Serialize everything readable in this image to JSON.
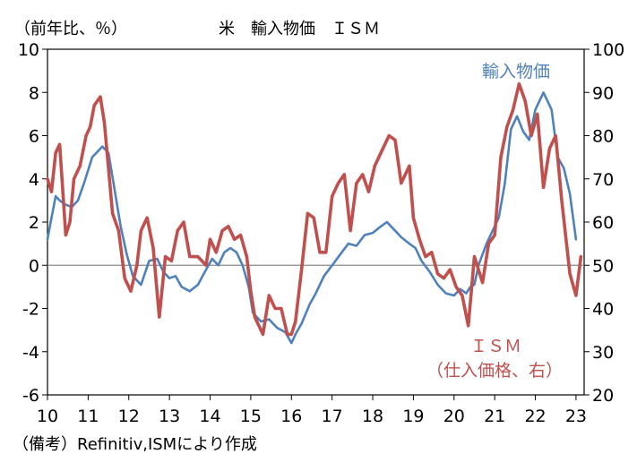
{
  "chart_data": {
    "type": "line",
    "title": "米　輸入物価　ＩＳＭ",
    "left_axis_unit": "（前年比、％）",
    "source_note": "（備考）Refinitiv,ISMにより作成",
    "x_tick_labels": [
      "10",
      "11",
      "12",
      "13",
      "14",
      "15",
      "16",
      "17",
      "18",
      "19",
      "20",
      "21",
      "22",
      "23"
    ],
    "x_range": [
      2010.0,
      2023.2
    ],
    "y_left": {
      "range": [
        -6,
        10
      ],
      "ticks": [
        -6,
        -4,
        -2,
        0,
        2,
        4,
        6,
        8,
        10
      ]
    },
    "y_right": {
      "range": [
        20,
        100
      ],
      "ticks": [
        20,
        30,
        40,
        50,
        60,
        70,
        80,
        90,
        100
      ]
    },
    "series": [
      {
        "name": "輸入物価",
        "label_text": "輸入物価",
        "axis": "left",
        "color": "#4f81bd",
        "x": [
          2010.0,
          2010.1,
          2010.2,
          2010.3,
          2010.45,
          2010.6,
          2010.75,
          2010.9,
          2011.1,
          2011.35,
          2011.5,
          2011.65,
          2011.8,
          2011.95,
          2012.1,
          2012.3,
          2012.5,
          2012.7,
          2012.85,
          2013.0,
          2013.15,
          2013.3,
          2013.5,
          2013.7,
          2013.9,
          2014.05,
          2014.2,
          2014.35,
          2014.5,
          2014.65,
          2014.8,
          2014.95,
          2015.05,
          2015.25,
          2015.45,
          2015.65,
          2015.85,
          2016.0,
          2016.1,
          2016.25,
          2016.45,
          2016.6,
          2016.8,
          2017.0,
          2017.2,
          2017.4,
          2017.6,
          2017.8,
          2018.0,
          2018.2,
          2018.35,
          2018.5,
          2018.7,
          2018.9,
          2019.05,
          2019.2,
          2019.4,
          2019.6,
          2019.8,
          2020.0,
          2020.15,
          2020.3,
          2020.4,
          2020.5,
          2020.6,
          2020.8,
          2020.95,
          2021.1,
          2021.25,
          2021.4,
          2021.55,
          2021.7,
          2021.85,
          2022.0,
          2022.2,
          2022.4,
          2022.55,
          2022.7,
          2022.85,
          2023.0
        ],
        "values": [
          1.2,
          2.2,
          3.2,
          3.0,
          2.8,
          2.7,
          3.0,
          3.8,
          5.0,
          5.5,
          5.2,
          3.5,
          1.8,
          0.5,
          -0.5,
          -0.9,
          0.2,
          0.3,
          -0.3,
          -0.6,
          -0.5,
          -1.0,
          -1.2,
          -0.9,
          -0.2,
          0.3,
          0.0,
          0.6,
          0.8,
          0.6,
          0.0,
          -1.0,
          -2.2,
          -2.6,
          -2.5,
          -2.9,
          -3.1,
          -3.6,
          -3.2,
          -2.7,
          -1.8,
          -1.3,
          -0.5,
          0.0,
          0.5,
          1.0,
          0.9,
          1.4,
          1.5,
          1.8,
          2.0,
          1.7,
          1.3,
          1.0,
          0.8,
          0.2,
          -0.3,
          -0.9,
          -1.3,
          -1.4,
          -1.1,
          -1.3,
          -1.0,
          -0.9,
          0.0,
          1.0,
          1.6,
          2.2,
          3.8,
          6.3,
          6.9,
          6.2,
          5.8,
          7.2,
          8.0,
          7.2,
          5.0,
          4.5,
          3.3,
          1.2
        ]
      },
      {
        "name": "ＩＳＭ（仕入価格、右）",
        "label_text_1": "ＩＳＭ",
        "label_text_2": "（仕入価格、右）",
        "axis": "right",
        "color": "#c0504d",
        "x": [
          2010.0,
          2010.1,
          2010.2,
          2010.3,
          2010.45,
          2010.55,
          2010.65,
          2010.8,
          2010.95,
          2011.05,
          2011.15,
          2011.3,
          2011.4,
          2011.6,
          2011.75,
          2011.9,
          2012.05,
          2012.2,
          2012.3,
          2012.45,
          2012.6,
          2012.75,
          2012.9,
          2013.05,
          2013.2,
          2013.35,
          2013.5,
          2013.7,
          2013.9,
          2014.0,
          2014.15,
          2014.3,
          2014.45,
          2014.6,
          2014.75,
          2014.9,
          2015.0,
          2015.1,
          2015.3,
          2015.45,
          2015.6,
          2015.75,
          2015.9,
          2016.0,
          2016.1,
          2016.25,
          2016.4,
          2016.55,
          2016.7,
          2016.85,
          2017.0,
          2017.15,
          2017.3,
          2017.45,
          2017.6,
          2017.75,
          2017.9,
          2018.05,
          2018.2,
          2018.4,
          2018.55,
          2018.7,
          2018.9,
          2019.0,
          2019.15,
          2019.3,
          2019.45,
          2019.6,
          2019.75,
          2019.9,
          2020.05,
          2020.2,
          2020.35,
          2020.5,
          2020.7,
          2020.85,
          2021.0,
          2021.15,
          2021.3,
          2021.45,
          2021.6,
          2021.75,
          2021.9,
          2022.05,
          2022.2,
          2022.35,
          2022.5,
          2022.65,
          2022.85,
          2023.0,
          2023.12
        ],
        "values": [
          70,
          67,
          76,
          78,
          57,
          60,
          70,
          73,
          80,
          82,
          87,
          89,
          83,
          62,
          58,
          47,
          44,
          50,
          58,
          61,
          54,
          38,
          52,
          51,
          58,
          60,
          52,
          52,
          50,
          56,
          53,
          58,
          59,
          56,
          57,
          52,
          44,
          38,
          34,
          43,
          40,
          40,
          34,
          34,
          37,
          49,
          62,
          61,
          53,
          53,
          66,
          69,
          71,
          58,
          69,
          71,
          67,
          73,
          76,
          80,
          79,
          69,
          73,
          61,
          56,
          52,
          53,
          48,
          47,
          49,
          45,
          43,
          36,
          52,
          46,
          55,
          57,
          75,
          82,
          86,
          92,
          88,
          80,
          85,
          68,
          77,
          80,
          65,
          48,
          43,
          52
        ]
      }
    ]
  }
}
